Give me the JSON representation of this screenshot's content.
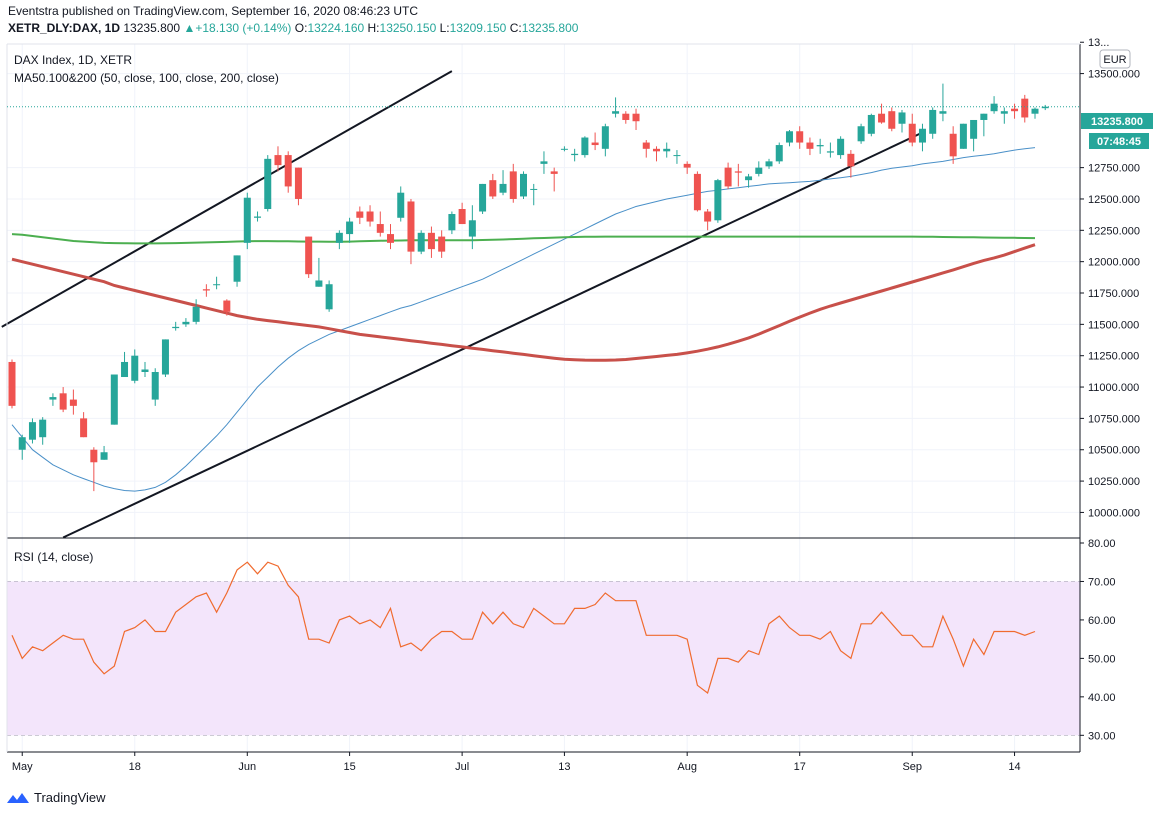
{
  "header": {
    "published": "Eventstra published on TradingView.com, September 16, 2020 08:46:23 UTC",
    "symbol": "XETR_DLY:DAX, 1D",
    "last": "13235.800",
    "change": "+18.130 (+0.14%)",
    "o_label": "O:",
    "o": "13224.160",
    "h_label": "H:",
    "h": "13250.150",
    "l_label": "L:",
    "l": "13209.150",
    "c_label": "C:",
    "c": "13235.800"
  },
  "legend": {
    "title": "DAX Index, 1D, XETR",
    "ma": "MA50.100&200 (50, close, 100, close, 200, close)",
    "rsi": "RSI (14, close)"
  },
  "currency": "EUR",
  "price_badge": "13235.800",
  "countdown": "07:48:45",
  "footer": {
    "brand": "TradingView"
  },
  "colors": {
    "up": "#26a69a",
    "down": "#ef5350",
    "ma50": "#4a90c8",
    "ma100": "#4caf50",
    "ma200": "#c8504a",
    "rsi": "#f06b2f",
    "rsi_band": "#f3e5fb"
  },
  "chart_data": [
    {
      "type": "candlestick",
      "x_tick_labels": [
        "May",
        "18",
        "Jun",
        "15",
        "Jul",
        "13",
        "Aug",
        "17",
        "Sep",
        "14"
      ],
      "y_tick_labels": [
        "13...",
        "13500.000",
        "12750.000",
        "12500.000",
        "12250.000",
        "12000.000",
        "11750.000",
        "11500.000",
        "11250.000",
        "11000.000",
        "10750.000",
        "10500.000",
        "10250.000",
        "10000.000"
      ],
      "ylim": [
        9820,
        13720
      ],
      "candles": [
        [
          11200,
          11220,
          10830,
          10850
        ],
        [
          10500,
          10620,
          10420,
          10600
        ],
        [
          10580,
          10750,
          10550,
          10720
        ],
        [
          10600,
          10760,
          10540,
          10740
        ],
        [
          10900,
          10950,
          10850,
          10920
        ],
        [
          10950,
          11000,
          10800,
          10820
        ],
        [
          10900,
          10980,
          10780,
          10850
        ],
        [
          10750,
          10800,
          10600,
          10600
        ],
        [
          10500,
          10520,
          10170,
          10400
        ],
        [
          10420,
          10530,
          10420,
          10480
        ],
        [
          10700,
          11100,
          10700,
          11100
        ],
        [
          11080,
          11280,
          11080,
          11200
        ],
        [
          11050,
          11300,
          11030,
          11250
        ],
        [
          11120,
          11200,
          11080,
          11140
        ],
        [
          10900,
          11150,
          10850,
          11120
        ],
        [
          11100,
          11380,
          11080,
          11380
        ],
        [
          11470,
          11520,
          11450,
          11480
        ],
        [
          11500,
          11550,
          11480,
          11520
        ],
        [
          11520,
          11700,
          11500,
          11640
        ],
        [
          11780,
          11820,
          11720,
          11770
        ],
        [
          11820,
          11880,
          11780,
          11820
        ],
        [
          11690,
          11700,
          11570,
          11600
        ],
        [
          11840,
          12050,
          11800,
          12050
        ],
        [
          12150,
          12550,
          12100,
          12510
        ],
        [
          12350,
          12400,
          12320,
          12360
        ],
        [
          12420,
          12850,
          12400,
          12820
        ],
        [
          12850,
          12920,
          12720,
          12770
        ],
        [
          12850,
          12880,
          12550,
          12600
        ],
        [
          12750,
          12750,
          12450,
          12500
        ],
        [
          12200,
          12200,
          11870,
          11900
        ],
        [
          11800,
          12030,
          11800,
          11850
        ],
        [
          11620,
          11850,
          11600,
          11820
        ],
        [
          12150,
          12250,
          12100,
          12230
        ],
        [
          12220,
          12350,
          12150,
          12320
        ],
        [
          12400,
          12440,
          12300,
          12350
        ],
        [
          12400,
          12450,
          12280,
          12320
        ],
        [
          12300,
          12400,
          12200,
          12230
        ],
        [
          12220,
          12300,
          12100,
          12150
        ],
        [
          12350,
          12600,
          12320,
          12550
        ],
        [
          12480,
          12500,
          11980,
          12080
        ],
        [
          12080,
          12250,
          12060,
          12230
        ],
        [
          12230,
          12280,
          12030,
          12100
        ],
        [
          12200,
          12250,
          12030,
          12080
        ],
        [
          12250,
          12400,
          12220,
          12380
        ],
        [
          12420,
          12470,
          12300,
          12300
        ],
        [
          12200,
          12450,
          12100,
          12330
        ],
        [
          12400,
          12620,
          12380,
          12620
        ],
        [
          12650,
          12700,
          12500,
          12520
        ],
        [
          12550,
          12730,
          12530,
          12620
        ],
        [
          12720,
          12780,
          12470,
          12500
        ],
        [
          12520,
          12720,
          12500,
          12700
        ],
        [
          12580,
          12620,
          12450,
          12580
        ],
        [
          12780,
          12880,
          12700,
          12800
        ],
        [
          12720,
          12750,
          12560,
          12700
        ],
        [
          12900,
          12920,
          12880,
          12900
        ],
        [
          12850,
          12900,
          12800,
          12860
        ],
        [
          12850,
          13000,
          12830,
          12990
        ],
        [
          12950,
          13030,
          12890,
          12930
        ],
        [
          12900,
          13100,
          12840,
          13080
        ],
        [
          13180,
          13310,
          13150,
          13200
        ],
        [
          13180,
          13200,
          13100,
          13130
        ],
        [
          13180,
          13220,
          13050,
          13120
        ],
        [
          12950,
          12970,
          12830,
          12900
        ],
        [
          12900,
          12920,
          12800,
          12880
        ],
        [
          12880,
          12950,
          12830,
          12900
        ],
        [
          12850,
          12890,
          12780,
          12850
        ],
        [
          12780,
          12800,
          12700,
          12750
        ],
        [
          12700,
          12720,
          12400,
          12410
        ],
        [
          12400,
          12420,
          12250,
          12320
        ],
        [
          12330,
          12660,
          12310,
          12650
        ],
        [
          12750,
          12790,
          12580,
          12600
        ],
        [
          12720,
          12780,
          12600,
          12710
        ],
        [
          12650,
          12700,
          12590,
          12680
        ],
        [
          12700,
          12800,
          12680,
          12750
        ],
        [
          12760,
          12820,
          12740,
          12800
        ],
        [
          12800,
          12950,
          12780,
          12930
        ],
        [
          12950,
          13050,
          12920,
          13040
        ],
        [
          13040,
          13080,
          12900,
          12950
        ],
        [
          12950,
          12990,
          12850,
          12900
        ],
        [
          12920,
          12980,
          12860,
          12930
        ],
        [
          12870,
          12950,
          12830,
          12880
        ],
        [
          12850,
          13000,
          12820,
          12980
        ],
        [
          12860,
          12890,
          12670,
          12760
        ],
        [
          12960,
          13100,
          12940,
          13080
        ],
        [
          13020,
          13180,
          13000,
          13170
        ],
        [
          13180,
          13260,
          13100,
          13110
        ],
        [
          13200,
          13230,
          13040,
          13060
        ],
        [
          13100,
          13210,
          13030,
          13190
        ],
        [
          13100,
          13180,
          12920,
          12950
        ],
        [
          12950,
          13100,
          12880,
          13060
        ],
        [
          13020,
          13230,
          12980,
          13210
        ],
        [
          13180,
          13420,
          13120,
          13200
        ],
        [
          13020,
          13080,
          12780,
          12840
        ],
        [
          12900,
          13100,
          12900,
          13100
        ],
        [
          12980,
          13120,
          12880,
          13130
        ],
        [
          13130,
          13180,
          13000,
          13180
        ],
        [
          13200,
          13320,
          13180,
          13260
        ],
        [
          13180,
          13230,
          13100,
          13200
        ],
        [
          13220,
          13260,
          13140,
          13200
        ],
        [
          13300,
          13330,
          13110,
          13150
        ],
        [
          13180,
          13230,
          13140,
          13220
        ],
        [
          13224,
          13250,
          13209,
          13236
        ]
      ],
      "ma50": [
        10700,
        10600,
        10500,
        10440,
        10380,
        10340,
        10300,
        10270,
        10240,
        10210,
        10190,
        10175,
        10170,
        10180,
        10200,
        10240,
        10300,
        10370,
        10450,
        10530,
        10610,
        10700,
        10800,
        10900,
        11000,
        11080,
        11160,
        11230,
        11290,
        11340,
        11380,
        11420,
        11450,
        11480,
        11510,
        11540,
        11570,
        11600,
        11630,
        11650,
        11680,
        11710,
        11740,
        11770,
        11800,
        11830,
        11860,
        11900,
        11940,
        11980,
        12020,
        12060,
        12100,
        12140,
        12180,
        12220,
        12260,
        12300,
        12340,
        12380,
        12410,
        12440,
        12460,
        12480,
        12500,
        12515,
        12530,
        12545,
        12560,
        12570,
        12580,
        12590,
        12600,
        12610,
        12620,
        12625,
        12630,
        12635,
        12640,
        12650,
        12660,
        12670,
        12680,
        12695,
        12710,
        12730,
        12745,
        12755,
        12765,
        12780,
        12790,
        12800,
        12815,
        12830,
        12840,
        12850,
        12860,
        12875,
        12890,
        12900,
        12910
      ],
      "ma100": [
        12220,
        12215,
        12205,
        12195,
        12185,
        12175,
        12165,
        12160,
        12155,
        12150,
        12148,
        12147,
        12146,
        12146,
        12146,
        12147,
        12148,
        12150,
        12152,
        12154,
        12156,
        12158,
        12161,
        12163,
        12164,
        12164,
        12163,
        12162,
        12161,
        12160,
        12160,
        12159,
        12159,
        12160,
        12162,
        12165,
        12167,
        12168,
        12169,
        12170,
        12170,
        12170,
        12170,
        12170,
        12170,
        12171,
        12173,
        12175,
        12177,
        12180,
        12183,
        12186,
        12189,
        12192,
        12195,
        12197,
        12198,
        12199,
        12200,
        12200,
        12200,
        12200,
        12200,
        12200,
        12200,
        12200,
        12200,
        12200,
        12200,
        12200,
        12200,
        12200,
        12200,
        12200,
        12200,
        12200,
        12200,
        12200,
        12200,
        12200,
        12200,
        12200,
        12200,
        12200,
        12200,
        12200,
        12200,
        12200,
        12200,
        12199,
        12198,
        12197,
        12196,
        12195,
        12194,
        12193,
        12192,
        12191,
        12190,
        12189,
        12188
      ],
      "ma200": [
        12020,
        12000,
        11980,
        11960,
        11940,
        11920,
        11900,
        11880,
        11860,
        11840,
        11810,
        11790,
        11770,
        11750,
        11730,
        11710,
        11690,
        11670,
        11650,
        11630,
        11610,
        11590,
        11570,
        11555,
        11540,
        11530,
        11520,
        11510,
        11500,
        11490,
        11480,
        11465,
        11450,
        11435,
        11420,
        11410,
        11400,
        11390,
        11380,
        11370,
        11360,
        11350,
        11340,
        11330,
        11320,
        11310,
        11300,
        11290,
        11280,
        11270,
        11260,
        11250,
        11240,
        11230,
        11222,
        11218,
        11215,
        11214,
        11214,
        11216,
        11220,
        11228,
        11236,
        11244,
        11252,
        11260,
        11272,
        11286,
        11302,
        11320,
        11342,
        11366,
        11392,
        11422,
        11456,
        11490,
        11524,
        11558,
        11590,
        11620,
        11646,
        11670,
        11694,
        11718,
        11742,
        11766,
        11790,
        11814,
        11838,
        11862,
        11886,
        11910,
        11934,
        11960,
        11986,
        12010,
        12030,
        12052,
        12080,
        12108,
        12135
      ],
      "trendlines": [
        {
          "from": [
            -1,
            11480
          ],
          "to": [
            43,
            13520
          ]
        },
        {
          "from": [
            5,
            9800
          ],
          "to": [
            89,
            13030
          ]
        }
      ]
    },
    {
      "type": "line",
      "title": "RSI (14, close)",
      "y_tick_labels": [
        "80.00",
        "70.00",
        "60.00",
        "50.00",
        "40.00",
        "30.00"
      ],
      "ylim": [
        28,
        80
      ],
      "band": [
        30,
        70
      ],
      "values": [
        56,
        50,
        53,
        52,
        54,
        56,
        55,
        55,
        49,
        46,
        48,
        57,
        58,
        60,
        57,
        57,
        62,
        64,
        66,
        67,
        62,
        67,
        73,
        75,
        72,
        75,
        74,
        69,
        66,
        55,
        55,
        54,
        60,
        61,
        59,
        60,
        58,
        63,
        53,
        54,
        52,
        55,
        57,
        57,
        55,
        55,
        62,
        59,
        62,
        59,
        58,
        63,
        61,
        59,
        59,
        63,
        63,
        64,
        67,
        65,
        65,
        65,
        56,
        56,
        56,
        56,
        55,
        43,
        41,
        50,
        50,
        49,
        52,
        51,
        59,
        61,
        58,
        56,
        56,
        55,
        57,
        52,
        50,
        59,
        59,
        62,
        59,
        56,
        56,
        53,
        53,
        61,
        55,
        48,
        55,
        51,
        57,
        57,
        57,
        56,
        57
      ]
    }
  ]
}
